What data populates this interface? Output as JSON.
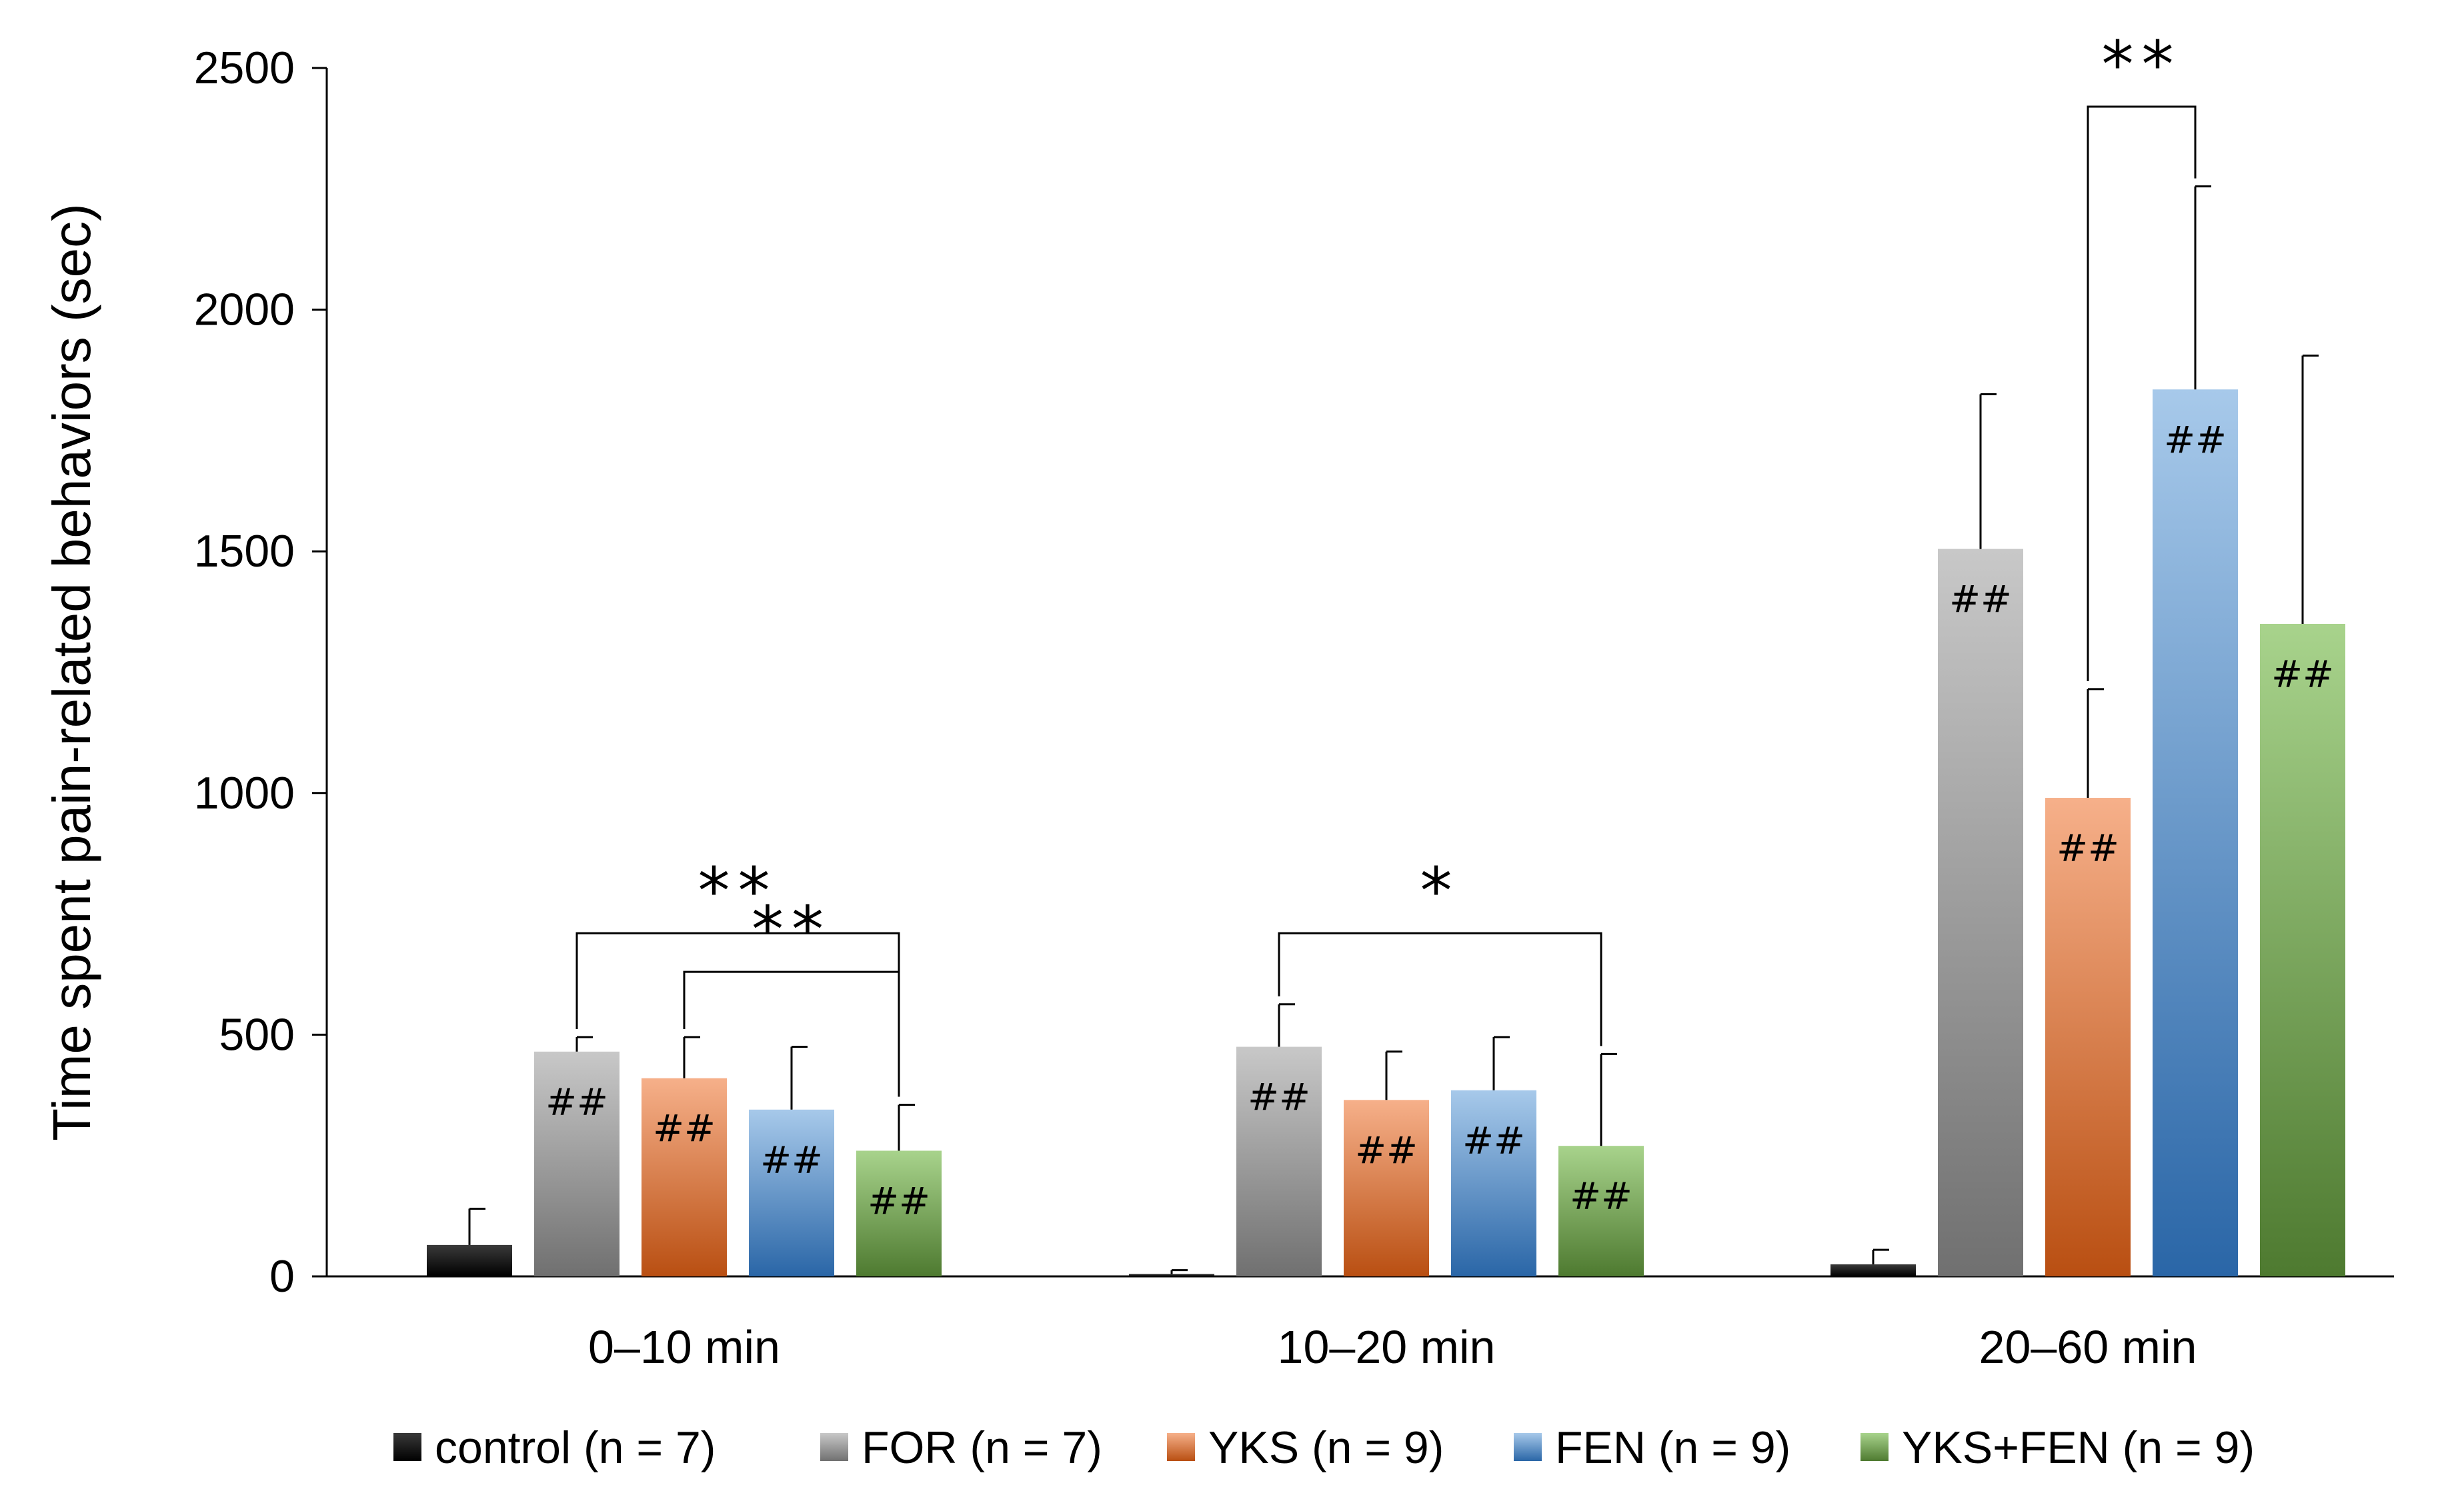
{
  "chart_data": {
    "type": "bar",
    "title": "",
    "xlabel": "",
    "ylabel": "Time spent pain-related behaviors (sec)",
    "ylim": [
      0,
      2500
    ],
    "yticks": [
      0,
      500,
      1000,
      1500,
      2000,
      2500
    ],
    "grid": false,
    "legend_position": "bottom",
    "categories": [
      "0–10 min",
      "10–20 min",
      "20–60 min"
    ],
    "series": [
      {
        "name": "control (n = 7)",
        "color_top": "#3a3a3a",
        "color_bottom": "#000000",
        "values": [
          65,
          5,
          25
        ],
        "errors": [
          75,
          8,
          30
        ],
        "bar_labels": [
          "",
          "",
          ""
        ]
      },
      {
        "name": "FOR (n = 7)",
        "color_top": "#c8c8c8",
        "color_bottom": "#707070",
        "values": [
          465,
          475,
          1505
        ],
        "errors": [
          30,
          88,
          320
        ],
        "bar_labels": [
          "##",
          "##",
          "##"
        ]
      },
      {
        "name": "YKS (n = 9)",
        "color_top": "#f6b08a",
        "color_bottom": "#b94f12",
        "values": [
          410,
          365,
          990
        ],
        "errors": [
          85,
          100,
          225
        ],
        "bar_labels": [
          "##",
          "##",
          "##"
        ]
      },
      {
        "name": "FEN (n = 9)",
        "color_top": "#a7c9ea",
        "color_bottom": "#2a66a7",
        "values": [
          345,
          385,
          1835
        ],
        "errors": [
          130,
          110,
          420
        ],
        "bar_labels": [
          "##",
          "##",
          "##"
        ]
      },
      {
        "name": "YKS+FEN (n = 9)",
        "color_top": "#a8d38c",
        "color_bottom": "#4e7a30",
        "values": [
          260,
          270,
          1350
        ],
        "errors": [
          95,
          190,
          555
        ],
        "bar_labels": [
          "##",
          "##",
          "##"
        ]
      }
    ],
    "significance": [
      {
        "category": 0,
        "from": 1,
        "to": 4,
        "level": 710,
        "label": "**"
      },
      {
        "category": 0,
        "from": 2,
        "to": 4,
        "level": 630,
        "label": "**"
      },
      {
        "category": 1,
        "from": 1,
        "to": 4,
        "level": 710,
        "label": "*"
      },
      {
        "category": 2,
        "from": 2,
        "to": 3,
        "level": 2420,
        "label": "**"
      }
    ]
  }
}
